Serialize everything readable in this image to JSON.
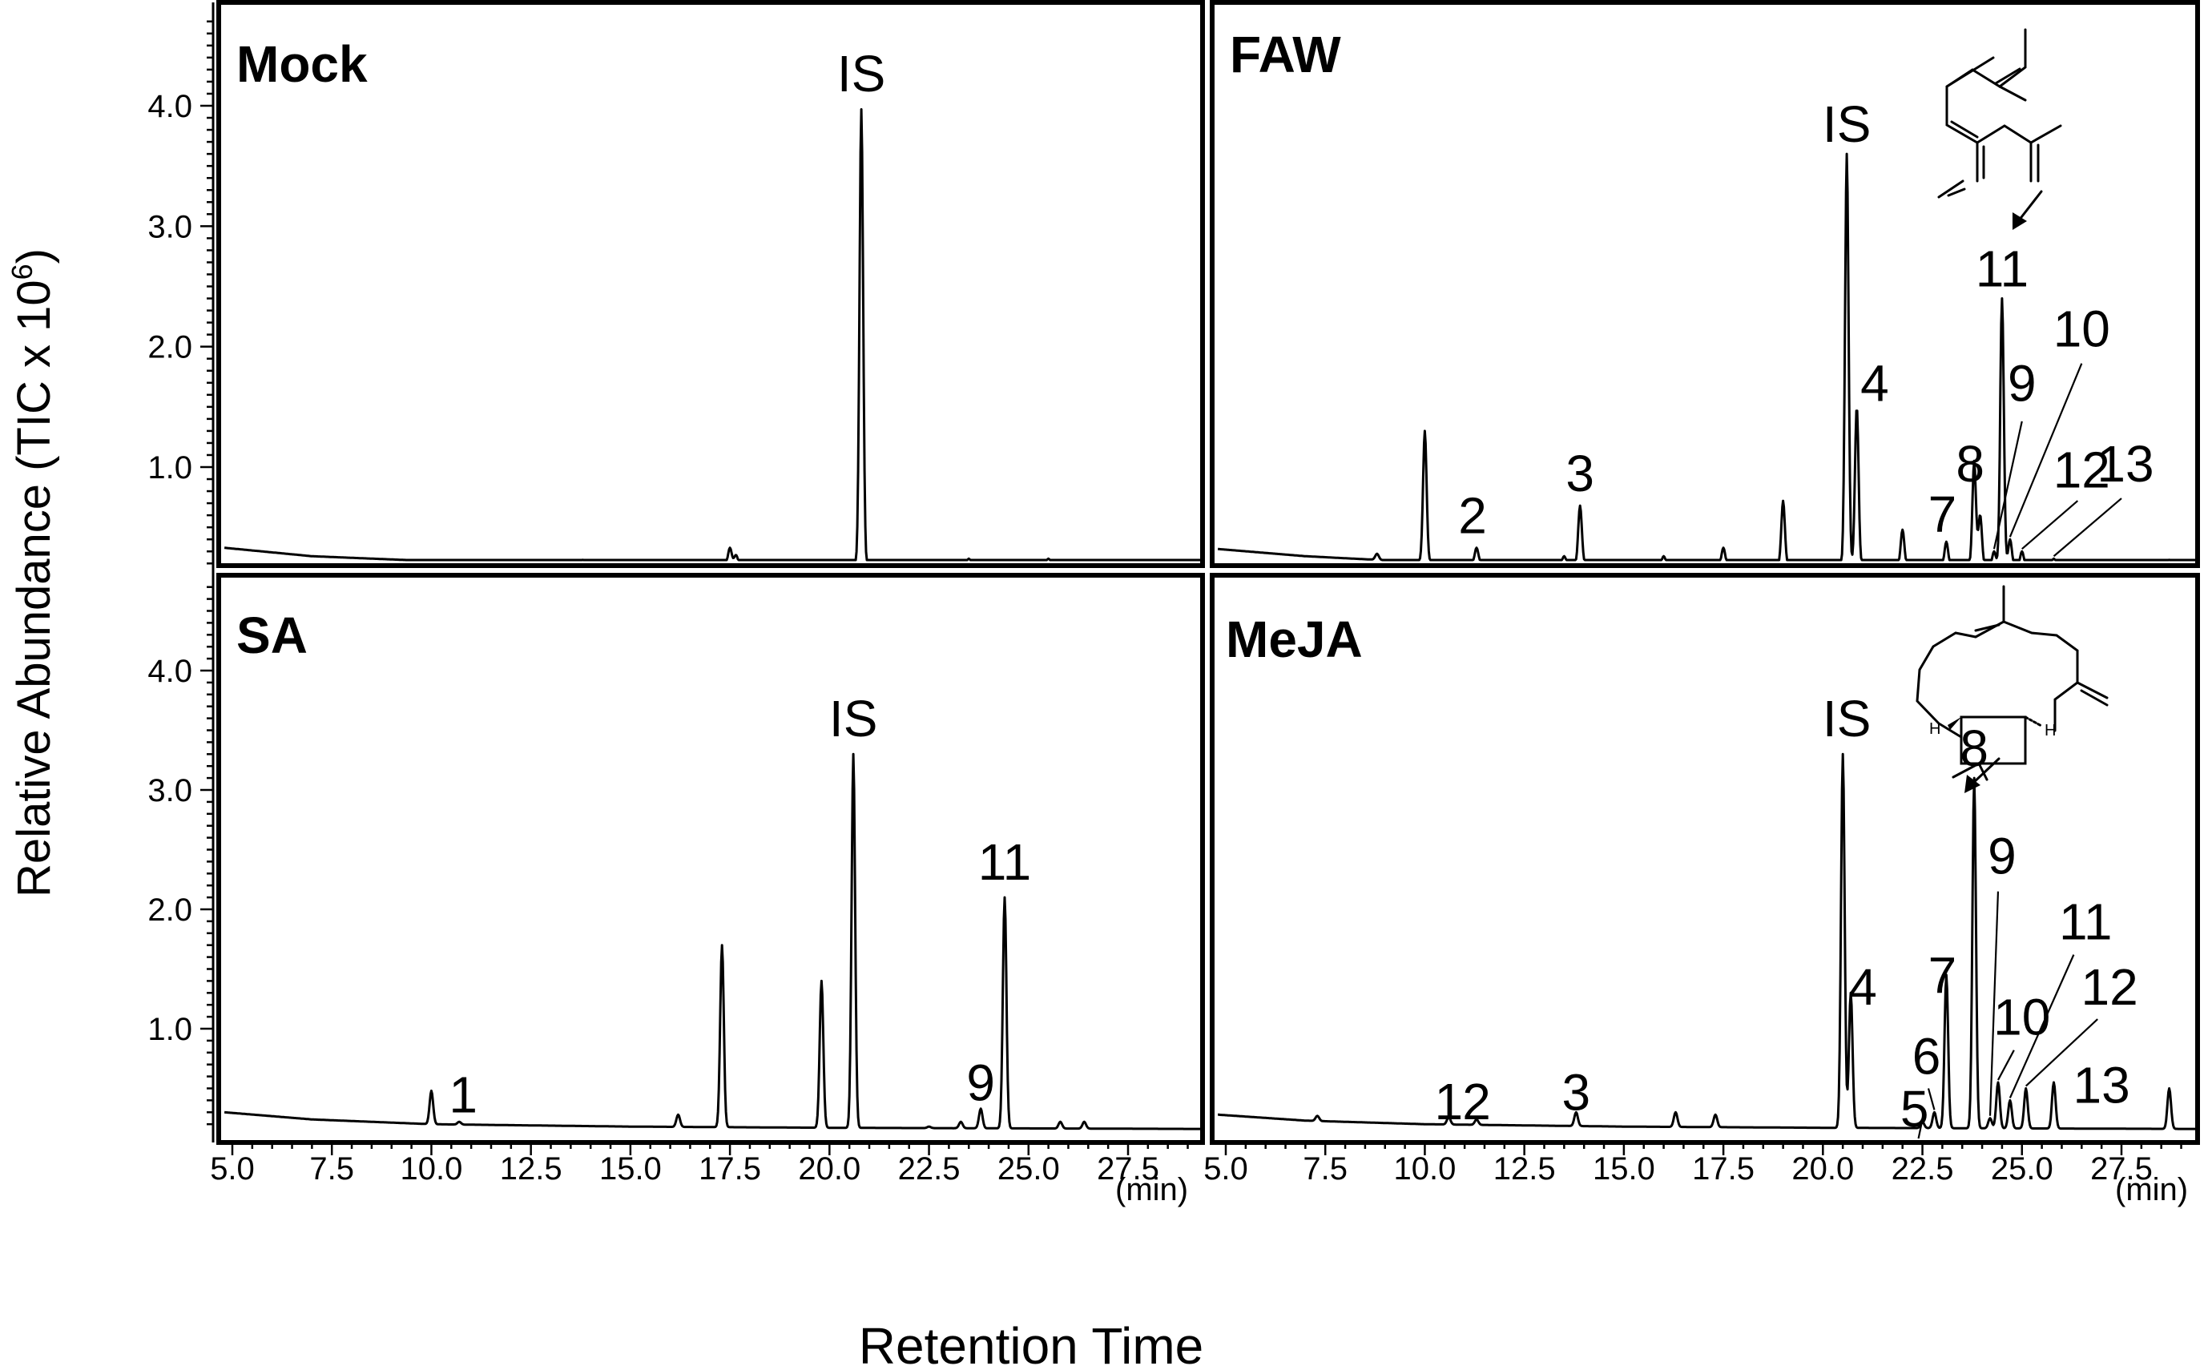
{
  "axes": {
    "ylabel": "Relative Abundance (TIC x 10",
    "ylabel_sup": "6",
    "ylabel_close": ")",
    "xlabel": "Retention Time",
    "x_unit": "(min)",
    "y_ticks": [
      "1.0",
      "2.0",
      "3.0",
      "4.0"
    ],
    "x_ticks": [
      "5.0",
      "7.5",
      "10.0",
      "12.5",
      "15.0",
      "17.5",
      "20.0",
      "22.5",
      "25.0",
      "27.5"
    ]
  },
  "chart_data": [
    {
      "type": "line",
      "title": "Mock",
      "xlabel": "Retention Time (min)",
      "ylabel": "Relative Abundance (TIC x 10^6)",
      "xlim": [
        4.8,
        29.6
      ],
      "ylim": [
        0,
        4.8
      ],
      "baseline": [
        [
          4.8,
          0.33
        ],
        [
          7,
          0.26
        ],
        [
          10,
          0.22
        ],
        [
          15,
          0.2
        ],
        [
          20,
          0.19
        ],
        [
          29.6,
          0.18
        ]
      ],
      "peaks": [
        {
          "x": 13.8,
          "y": 0.23
        },
        {
          "x": 17.5,
          "y": 0.33
        },
        {
          "x": 17.65,
          "y": 0.27
        },
        {
          "x": 20.8,
          "y": 3.97,
          "label": "IS"
        },
        {
          "x": 23.5,
          "y": 0.24
        },
        {
          "x": 24.5,
          "y": 0.22
        },
        {
          "x": 25.5,
          "y": 0.24
        }
      ],
      "labels": [
        {
          "text": "IS",
          "x": 20.8,
          "y": 4.12
        }
      ]
    },
    {
      "type": "line",
      "title": "FAW",
      "xlabel": "Retention Time (min)",
      "ylabel": "Relative Abundance (TIC x 10^6)",
      "xlim": [
        4.8,
        29.6
      ],
      "ylim": [
        0,
        4.8
      ],
      "baseline": [
        [
          4.8,
          0.32
        ],
        [
          7,
          0.26
        ],
        [
          10,
          0.21
        ],
        [
          15,
          0.19
        ],
        [
          20,
          0.18
        ],
        [
          29.6,
          0.17
        ]
      ],
      "peaks": [
        {
          "x": 8.8,
          "y": 0.28
        },
        {
          "x": 10.0,
          "y": 1.3
        },
        {
          "x": 11.3,
          "y": 0.33,
          "label": "2"
        },
        {
          "x": 13.5,
          "y": 0.26
        },
        {
          "x": 13.9,
          "y": 0.68,
          "label": "3"
        },
        {
          "x": 16.0,
          "y": 0.26
        },
        {
          "x": 17.5,
          "y": 0.33
        },
        {
          "x": 19.0,
          "y": 0.72
        },
        {
          "x": 20.6,
          "y": 3.6,
          "label": "IS"
        },
        {
          "x": 20.85,
          "y": 1.5,
          "label": "4"
        },
        {
          "x": 22.0,
          "y": 0.48
        },
        {
          "x": 23.1,
          "y": 0.38,
          "label": "7"
        },
        {
          "x": 23.8,
          "y": 1.05,
          "label": "8"
        },
        {
          "x": 23.95,
          "y": 0.6
        },
        {
          "x": 24.3,
          "y": 0.3,
          "label": "9"
        },
        {
          "x": 24.5,
          "y": 2.4,
          "label": "11"
        },
        {
          "x": 24.7,
          "y": 0.4,
          "label": "10"
        },
        {
          "x": 25.0,
          "y": 0.3,
          "label": "12"
        },
        {
          "x": 25.8,
          "y": 0.24,
          "label": "13"
        },
        {
          "x": 27.6,
          "y": 0.22
        },
        {
          "x": 28.7,
          "y": 0.23
        }
      ],
      "labels": [
        {
          "text": "IS",
          "x": 20.6,
          "y": 3.7
        },
        {
          "text": "2",
          "x": 11.2,
          "y": 0.45
        },
        {
          "text": "3",
          "x": 13.9,
          "y": 0.8
        },
        {
          "text": "4",
          "x": 21.3,
          "y": 1.55
        },
        {
          "text": "7",
          "x": 23.0,
          "y": 0.46
        },
        {
          "text": "8",
          "x": 23.7,
          "y": 0.88
        },
        {
          "text": "9",
          "x": 25.0,
          "y": 1.55
        },
        {
          "text": "10",
          "x": 26.5,
          "y": 2.0
        },
        {
          "text": "11",
          "x": 24.5,
          "y": 2.5
        },
        {
          "text": "12",
          "x": 26.5,
          "y": 0.83
        },
        {
          "text": "13",
          "x": 27.6,
          "y": 0.88
        }
      ]
    },
    {
      "type": "line",
      "title": "SA",
      "xlabel": "Retention Time (min)",
      "ylabel": "Relative Abundance (TIC x 10^6)",
      "xlim": [
        4.8,
        29.6
      ],
      "ylim": [
        0,
        4.8
      ],
      "baseline": [
        [
          4.8,
          0.3
        ],
        [
          7,
          0.24
        ],
        [
          10,
          0.2
        ],
        [
          15,
          0.18
        ],
        [
          20,
          0.17
        ],
        [
          29.6,
          0.16
        ]
      ],
      "peaks": [
        {
          "x": 10.0,
          "y": 0.48
        },
        {
          "x": 10.7,
          "y": 0.22,
          "label": "1"
        },
        {
          "x": 16.2,
          "y": 0.28
        },
        {
          "x": 17.3,
          "y": 1.7
        },
        {
          "x": 19.8,
          "y": 1.4
        },
        {
          "x": 20.6,
          "y": 3.3,
          "label": "IS"
        },
        {
          "x": 22.5,
          "y": 0.18
        },
        {
          "x": 23.3,
          "y": 0.22
        },
        {
          "x": 23.8,
          "y": 0.33,
          "label": "9"
        },
        {
          "x": 24.4,
          "y": 2.1,
          "label": "11"
        },
        {
          "x": 25.8,
          "y": 0.22
        },
        {
          "x": 26.4,
          "y": 0.22
        }
      ],
      "labels": [
        {
          "text": "IS",
          "x": 20.6,
          "y": 3.45
        },
        {
          "text": "1",
          "x": 10.8,
          "y": 0.3
        },
        {
          "text": "9",
          "x": 23.8,
          "y": 0.4
        },
        {
          "text": "11",
          "x": 24.4,
          "y": 2.25
        }
      ]
    },
    {
      "type": "line",
      "title": "MeJA",
      "xlabel": "Retention Time (min)",
      "ylabel": "Relative Abundance (TIC x 10^6)",
      "xlim": [
        4.8,
        29.6
      ],
      "ylim": [
        0,
        4.8
      ],
      "baseline": [
        [
          4.8,
          0.28
        ],
        [
          7,
          0.23
        ],
        [
          10,
          0.2
        ],
        [
          15,
          0.18
        ],
        [
          20,
          0.17
        ],
        [
          29.6,
          0.16
        ]
      ],
      "peaks": [
        {
          "x": 7.3,
          "y": 0.27
        },
        {
          "x": 10.6,
          "y": 0.26,
          "label": "1"
        },
        {
          "x": 11.3,
          "y": 0.24,
          "label": "2"
        },
        {
          "x": 13.8,
          "y": 0.3,
          "label": "3"
        },
        {
          "x": 16.3,
          "y": 0.3
        },
        {
          "x": 17.3,
          "y": 0.28
        },
        {
          "x": 20.5,
          "y": 3.3,
          "label": "IS"
        },
        {
          "x": 20.7,
          "y": 1.3,
          "label": "4"
        },
        {
          "x": 22.5,
          "y": 0.22,
          "label": "5"
        },
        {
          "x": 22.8,
          "y": 0.3,
          "label": "6"
        },
        {
          "x": 23.1,
          "y": 1.45,
          "label": "7"
        },
        {
          "x": 23.8,
          "y": 3.1,
          "label": "8"
        },
        {
          "x": 24.2,
          "y": 0.25,
          "label": "9"
        },
        {
          "x": 24.4,
          "y": 0.55,
          "label": "10"
        },
        {
          "x": 24.7,
          "y": 0.4,
          "label": "11"
        },
        {
          "x": 25.1,
          "y": 0.5,
          "label": "12"
        },
        {
          "x": 25.8,
          "y": 0.55,
          "label": "13"
        },
        {
          "x": 28.7,
          "y": 0.5
        }
      ],
      "labels": [
        {
          "text": "IS",
          "x": 20.6,
          "y": 3.45
        },
        {
          "text": "1",
          "x": 10.6,
          "y": 0.24
        },
        {
          "text": "2",
          "x": 11.3,
          "y": 0.24
        },
        {
          "text": "3",
          "x": 13.8,
          "y": 0.32
        },
        {
          "text": "4",
          "x": 21.0,
          "y": 1.2
        },
        {
          "text": "5",
          "x": 22.3,
          "y": 0.18
        },
        {
          "text": "6",
          "x": 22.6,
          "y": 0.62
        },
        {
          "text": "7",
          "x": 23.0,
          "y": 1.3
        },
        {
          "text": "8",
          "x": 23.8,
          "y": 3.2
        },
        {
          "text": "9",
          "x": 24.5,
          "y": 2.3
        },
        {
          "text": "10",
          "x": 25.0,
          "y": 0.95
        },
        {
          "text": "11",
          "x": 26.6,
          "y": 1.75
        },
        {
          "text": "12",
          "x": 27.2,
          "y": 1.2
        },
        {
          "text": "13",
          "x": 27.0,
          "y": 0.38
        }
      ]
    }
  ]
}
